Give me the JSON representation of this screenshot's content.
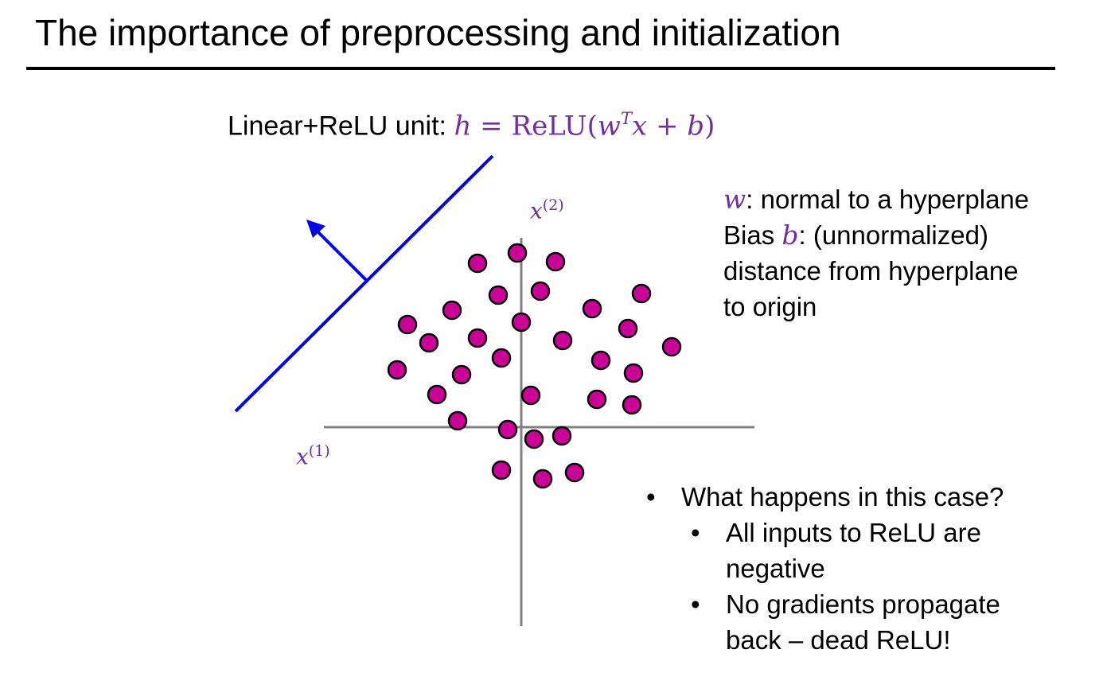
{
  "slide": {
    "title": "The importance of preprocessing and initialization",
    "formula": {
      "prefix": "Linear+ReLU unit: ",
      "h": "h",
      "eq": " = ",
      "relu_open": "ReLU(",
      "w": "w",
      "T": "T",
      "x": "x",
      "plus": " + ",
      "b": "b",
      "close": ")"
    },
    "notes": {
      "w_symbol": "w",
      "line1": ": normal to a hyperplane",
      "bias_prefix": "Bias ",
      "b_symbol": "b",
      "line2": ": (unnormalized)",
      "line3": "distance from hyperplane",
      "line4": "to origin"
    },
    "axis_labels": {
      "x1_base": "x",
      "x1_sup": "(1)",
      "x2_base": "x",
      "x2_sup": "(2)"
    },
    "bullets": {
      "question": "What happens in this case?",
      "sub1_line1": "All inputs to ReLU are",
      "sub1_line2": "negative",
      "sub2_line1": "No gradients propagate",
      "sub2_line2": "back – dead ReLU!"
    },
    "colors": {
      "accent": "#7030a0",
      "points": "#cc0099",
      "hyperplane": "#0000ee",
      "axes": "#808080"
    }
  }
}
